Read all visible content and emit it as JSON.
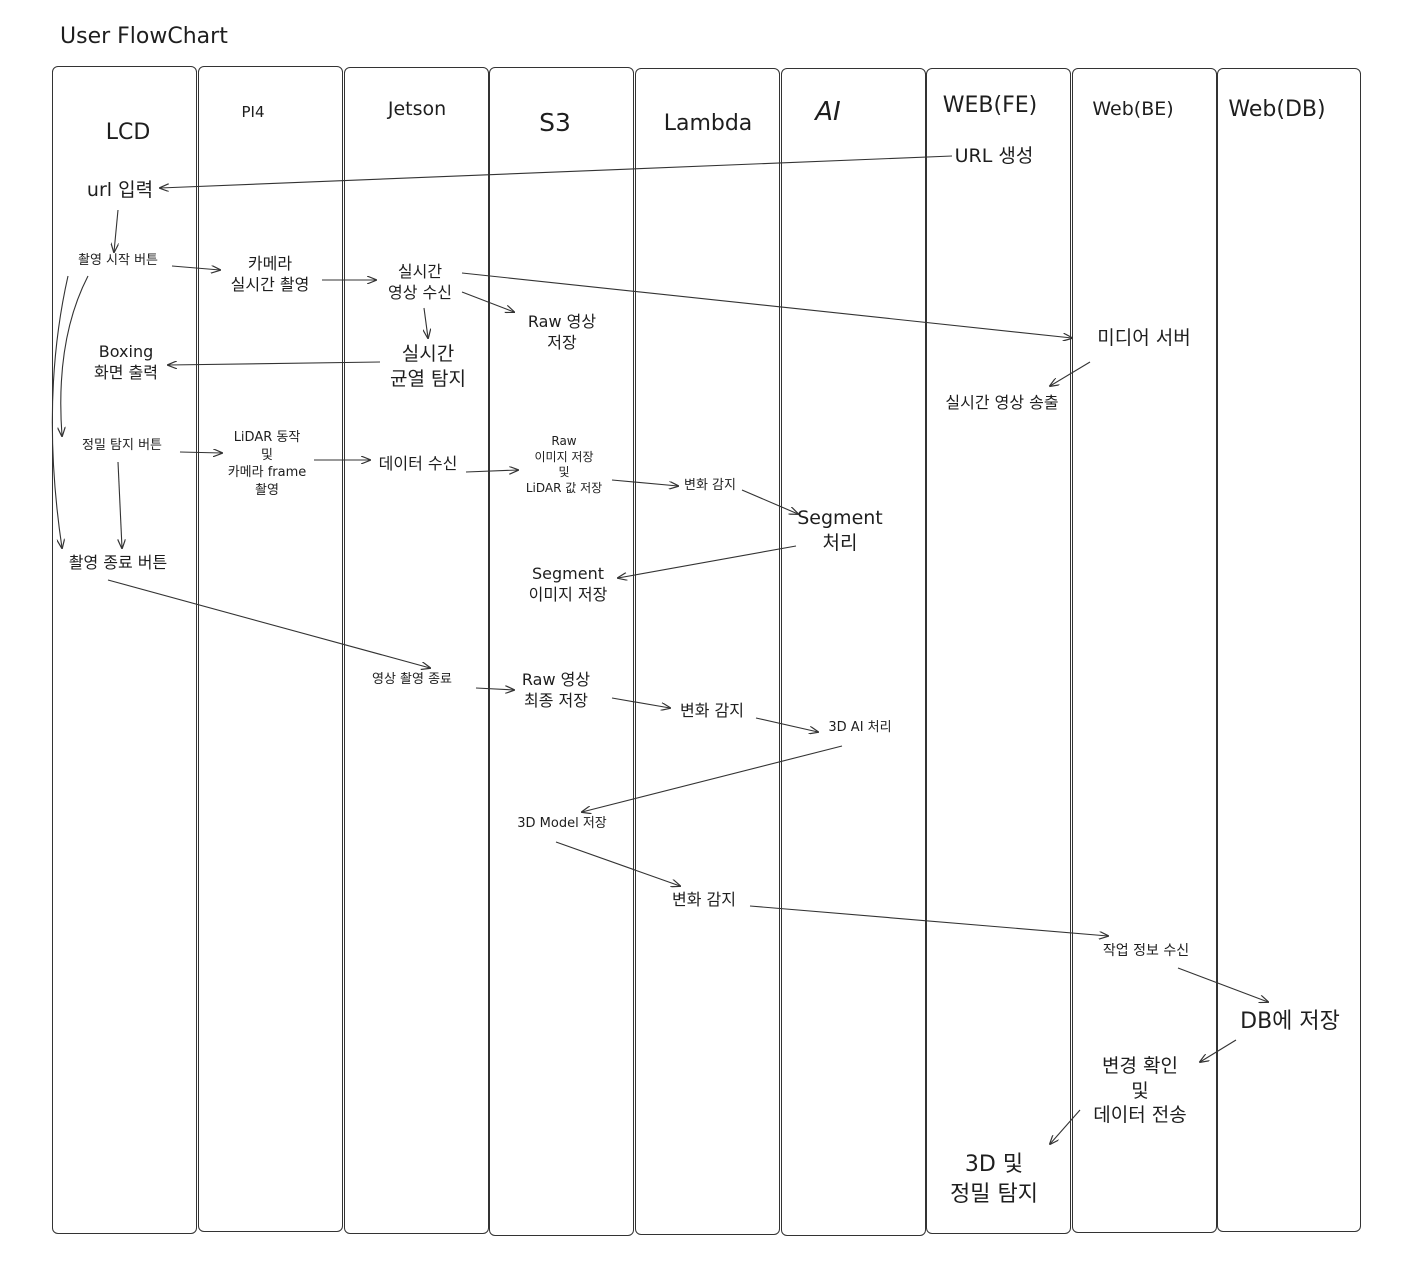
{
  "title": "User FlowChart",
  "lanes": [
    {
      "id": "lcd",
      "label": "LCD"
    },
    {
      "id": "pi4",
      "label": "PI4"
    },
    {
      "id": "jetson",
      "label": "Jetson"
    },
    {
      "id": "s3",
      "label": "S3"
    },
    {
      "id": "lambda",
      "label": "Lambda"
    },
    {
      "id": "ai",
      "label": "AI"
    },
    {
      "id": "webfe",
      "label": "WEB(FE)"
    },
    {
      "id": "webbe",
      "label": "Web(BE)"
    },
    {
      "id": "webdb",
      "label": "Web(DB)"
    }
  ],
  "nodes": [
    {
      "id": "url-gen",
      "text": "URL 생성"
    },
    {
      "id": "url-input",
      "text": "url 입력"
    },
    {
      "id": "rec-start",
      "text": "촬영 시작 버튼"
    },
    {
      "id": "cam-live",
      "text": "카메라\n실시간 촬영"
    },
    {
      "id": "live-recv",
      "text": "실시간\n영상 수신"
    },
    {
      "id": "raw-store",
      "text": "Raw 영상\n저장"
    },
    {
      "id": "media-server",
      "text": "미디어 서버"
    },
    {
      "id": "live-broadcast",
      "text": "실시간 영상 송출"
    },
    {
      "id": "crack-detect",
      "text": "실시간\n균열 탐지"
    },
    {
      "id": "boxing-out",
      "text": "Boxing\n화면 출력"
    },
    {
      "id": "precise-btn",
      "text": "정밀 탐지 버튼"
    },
    {
      "id": "lidar-op",
      "text": "LiDAR 동작\n및\n카메라 frame\n촬영"
    },
    {
      "id": "data-recv",
      "text": "데이터 수신"
    },
    {
      "id": "raw-img-store",
      "text": "Raw\n이미지 저장\n및\nLiDAR 값 저장"
    },
    {
      "id": "change-1",
      "text": "변화 감지"
    },
    {
      "id": "segment-proc",
      "text": "Segment\n처리"
    },
    {
      "id": "segment-store",
      "text": "Segment\n이미지 저장"
    },
    {
      "id": "rec-end-btn",
      "text": "촬영 종료 버튼"
    },
    {
      "id": "rec-end",
      "text": "영상 촬영 종료"
    },
    {
      "id": "raw-final",
      "text": "Raw 영상\n최종 저장"
    },
    {
      "id": "change-2",
      "text": "변화 감지"
    },
    {
      "id": "ai-3d",
      "text": "3D AI 처리"
    },
    {
      "id": "model-store",
      "text": "3D Model 저장"
    },
    {
      "id": "change-3",
      "text": "변화 감지"
    },
    {
      "id": "job-recv",
      "text": "작업 정보 수신"
    },
    {
      "id": "db-save",
      "text": "DB에 저장"
    },
    {
      "id": "change-confirm",
      "text": "변경 확인\n및\n데이터 전송"
    },
    {
      "id": "result",
      "text": "3D 및\n정밀 탐지"
    }
  ]
}
